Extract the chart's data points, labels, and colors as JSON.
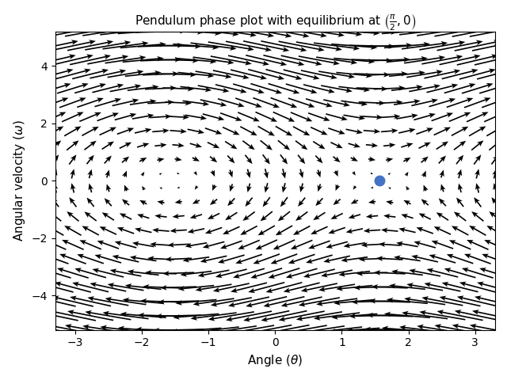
{
  "title": "Pendulum phase plot with equilibrium at $\\left(\\frac{\\pi}{2}, 0\\right)$",
  "xlabel": "Angle ($\\theta$)",
  "ylabel": "Angular velocity ($\\omega$)",
  "xlim": [
    -3.3,
    3.3
  ],
  "ylim": [
    -5.2,
    5.2
  ],
  "equilibrium_x": 1.5707963267948966,
  "equilibrium_y": 0.0,
  "equilibrium_color": "#4472c4",
  "grid_nx": 26,
  "grid_ny": 22,
  "arrow_color": "black",
  "background_color": "white",
  "figsize": [
    6.4,
    4.8
  ],
  "dpi": 100
}
